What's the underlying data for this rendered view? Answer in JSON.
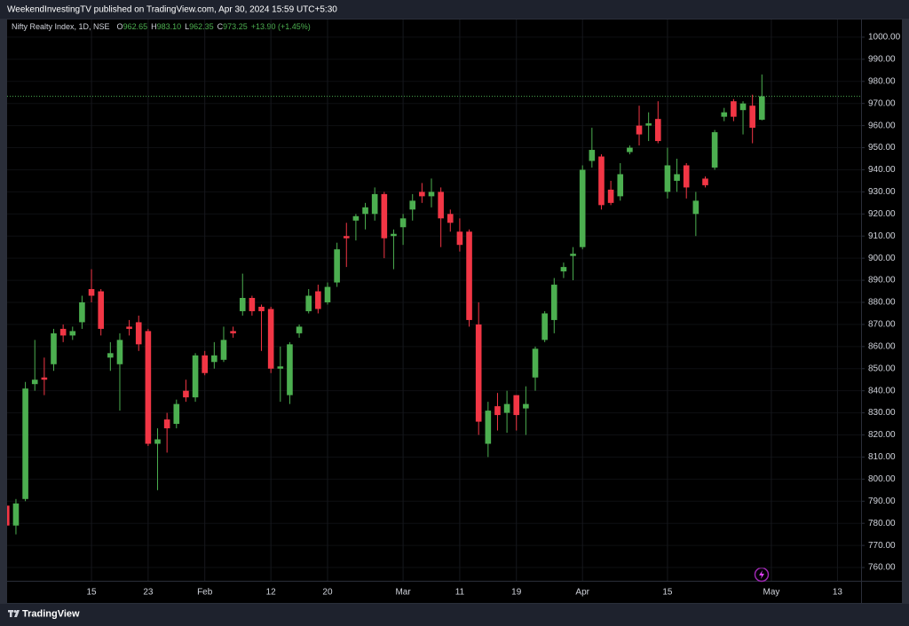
{
  "header": {
    "publisher": "WeekendInvestingTV published on TradingView.com, Apr 30, 2024 15:59 UTC+5:30"
  },
  "footer": {
    "brand": "TradingView"
  },
  "chart_data": {
    "type": "candlestick",
    "legend": {
      "symbol": "Nifty Realty Index, 1D, NSE",
      "items": [
        {
          "key": "O",
          "value": "962.65"
        },
        {
          "key": "H",
          "value": "983.10"
        },
        {
          "key": "L",
          "value": "962.35"
        },
        {
          "key": "C",
          "value": "973.25"
        }
      ],
      "change": "+13.90 (+1.45%)"
    },
    "categories": [
      null,
      null,
      null,
      null,
      null,
      null,
      null,
      null,
      null,
      "15",
      null,
      null,
      null,
      null,
      null,
      "23",
      null,
      null,
      null,
      null,
      null,
      "Feb",
      null,
      null,
      null,
      null,
      null,
      null,
      "12",
      null,
      null,
      null,
      null,
      null,
      "20",
      null,
      null,
      null,
      null,
      null,
      null,
      null,
      "Mar",
      null,
      null,
      null,
      null,
      null,
      "11",
      null,
      null,
      null,
      null,
      null,
      "19",
      null,
      null,
      null,
      null,
      null,
      null,
      "Apr",
      null,
      null,
      null,
      null,
      null,
      null,
      null,
      null,
      "15",
      null,
      null,
      null,
      null,
      null,
      null,
      null,
      null,
      null,
      null,
      "May",
      null,
      null,
      null,
      null,
      null,
      null,
      "13",
      null,
      null
    ],
    "open": [
      788,
      779,
      791,
      843,
      846,
      852,
      868,
      865,
      871,
      886,
      885,
      855,
      852,
      869,
      871,
      867,
      816,
      827,
      825,
      840,
      837,
      856,
      853,
      854,
      867,
      876,
      882,
      878,
      877,
      850,
      838,
      866,
      876,
      885,
      880,
      889,
      910,
      917,
      920,
      920,
      929,
      910,
      914,
      922,
      930,
      928,
      930,
      920,
      912,
      912,
      870,
      816,
      833,
      830,
      838,
      832,
      846,
      863,
      872,
      894,
      901,
      905,
      944,
      946,
      931,
      928,
      948,
      960,
      960,
      963,
      930,
      935,
      942,
      920,
      936,
      941,
      964,
      971,
      967,
      969,
      962.65,
      null,
      null,
      null,
      null,
      null,
      null,
      null,
      null,
      null,
      null
    ],
    "high": [
      790,
      791,
      844,
      863,
      855,
      868,
      870,
      869,
      883,
      895,
      886,
      862,
      866,
      872,
      874,
      868,
      823,
      830,
      836,
      845,
      857,
      858,
      862,
      869,
      869,
      893,
      883,
      879,
      878,
      860,
      862,
      870,
      886,
      888,
      889,
      907,
      916,
      920,
      925,
      932,
      930,
      913,
      920,
      929,
      934,
      936,
      932,
      922,
      918,
      913,
      880,
      835,
      839,
      840,
      838,
      842,
      860,
      876,
      891,
      898,
      905,
      942,
      959,
      947,
      935,
      943,
      951,
      969,
      966,
      971,
      950,
      945,
      943,
      930,
      937,
      958,
      968,
      972,
      971,
      974,
      983.1,
      null,
      null,
      null,
      null,
      null,
      null,
      null,
      null,
      null,
      null
    ],
    "low": [
      776,
      775,
      790,
      840,
      838,
      849,
      862,
      863,
      868,
      880,
      865,
      849,
      831,
      865,
      858,
      815,
      795,
      812,
      823,
      835,
      835,
      847,
      850,
      853,
      864,
      874,
      874,
      858,
      848,
      835,
      834,
      864,
      875,
      875,
      879,
      887,
      896,
      908,
      913,
      917,
      900,
      895,
      906,
      917,
      925,
      923,
      905,
      912,
      903,
      869,
      820,
      810,
      822,
      821,
      822,
      820,
      840,
      862,
      866,
      891,
      890,
      904,
      941,
      922,
      924,
      926,
      947,
      951,
      953,
      952,
      927,
      930,
      927,
      910,
      932,
      940,
      962,
      962,
      956,
      952,
      962.35,
      null,
      null,
      null,
      null,
      null,
      null,
      null,
      null,
      null,
      null
    ],
    "close": [
      779,
      789,
      841,
      845,
      845,
      866,
      865,
      867,
      880,
      883,
      868,
      857,
      863,
      868,
      861,
      816,
      818,
      823,
      834,
      837,
      856,
      848,
      856,
      863,
      866,
      882,
      876,
      876,
      850,
      851,
      861,
      869,
      883,
      877,
      887,
      904,
      909,
      919,
      923,
      929,
      909,
      911,
      918,
      926,
      928,
      930,
      918,
      916,
      906,
      872,
      826,
      831,
      829,
      834,
      829,
      834,
      859,
      875,
      888,
      896,
      902,
      940,
      949,
      924,
      925,
      938,
      950,
      956,
      961,
      953,
      942,
      938,
      932,
      926,
      933,
      957,
      966,
      964,
      970,
      959,
      973.25,
      null,
      null,
      null,
      null,
      null,
      null,
      null,
      null,
      null,
      null
    ],
    "up_color": "#4caf50",
    "down_color": "#f23645",
    "ylim": [
      754,
      1008
    ],
    "yticks": [
      {
        "value": 1000,
        "label": "1000.00"
      },
      {
        "value": 990,
        "label": "990.00"
      },
      {
        "value": 980,
        "label": "980.00"
      },
      {
        "value": 970,
        "label": "970.00"
      },
      {
        "value": 960,
        "label": "960.00"
      },
      {
        "value": 950,
        "label": "950.00"
      },
      {
        "value": 940,
        "label": "940.00"
      },
      {
        "value": 930,
        "label": "930.00"
      },
      {
        "value": 920,
        "label": "920.00"
      },
      {
        "value": 910,
        "label": "910.00"
      },
      {
        "value": 900,
        "label": "900.00"
      },
      {
        "value": 890,
        "label": "890.00"
      },
      {
        "value": 880,
        "label": "880.00"
      },
      {
        "value": 870,
        "label": "870.00"
      },
      {
        "value": 860,
        "label": "860.00"
      },
      {
        "value": 850,
        "label": "850.00"
      },
      {
        "value": 840,
        "label": "840.00"
      },
      {
        "value": 830,
        "label": "830.00"
      },
      {
        "value": 820,
        "label": "820.00"
      },
      {
        "value": 810,
        "label": "810.00"
      },
      {
        "value": 800,
        "label": "800.00"
      },
      {
        "value": 790,
        "label": "790.00"
      },
      {
        "value": 780,
        "label": "780.00"
      },
      {
        "value": 770,
        "label": "770.00"
      },
      {
        "value": 760,
        "label": "760.00"
      }
    ],
    "grid": true
  }
}
